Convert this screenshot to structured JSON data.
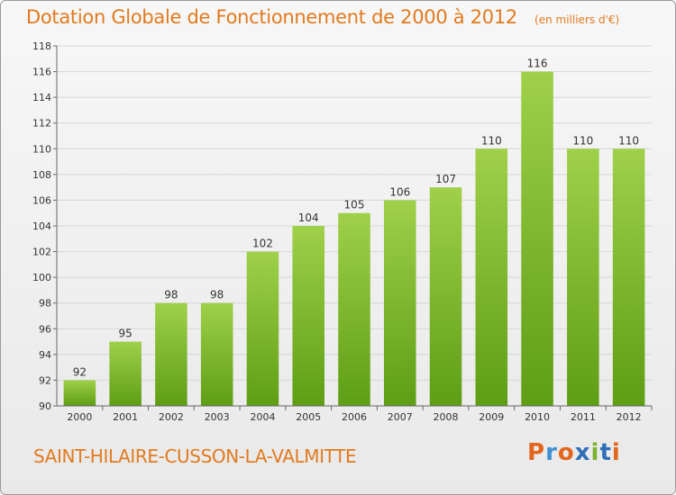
{
  "header": {
    "title": "Dotation Globale de Fonctionnement de 2000 à 2012",
    "unit_note": "(en milliers d'€)"
  },
  "footer": {
    "commune": "SAINT-HILAIRE-CUSSON-LA-VALMITTE",
    "logo_text": "Proxiti"
  },
  "colors": {
    "accent": "#e27a1e",
    "bar_light": "#9fd04a",
    "bar_dark": "#5e9e14",
    "grid": "#d6d6d6",
    "logo_letters": [
      "#e2661b",
      "#3f8fd2",
      "#e2661b",
      "#2f6fb8",
      "#7bb32e",
      "#2f6fb8",
      "#e2661b"
    ]
  },
  "chart_data": {
    "type": "bar",
    "title": "Dotation Globale de Fonctionnement de 2000 à 2012",
    "categories": [
      "2000",
      "2001",
      "2002",
      "2003",
      "2004",
      "2005",
      "2006",
      "2007",
      "2008",
      "2009",
      "2010",
      "2011",
      "2012"
    ],
    "values": [
      92,
      95,
      98,
      98,
      102,
      104,
      105,
      106,
      107,
      110,
      116,
      110,
      110
    ],
    "ylim": [
      90,
      118
    ],
    "yticks": [
      90,
      92,
      94,
      96,
      98,
      100,
      102,
      104,
      106,
      108,
      110,
      112,
      114,
      116,
      118
    ],
    "grid": true,
    "data_labels": true
  }
}
